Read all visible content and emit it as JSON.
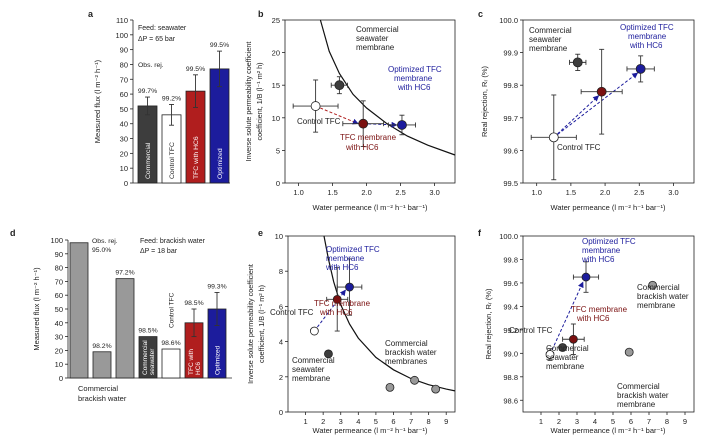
{
  "chart_data": [
    {
      "panel": "a",
      "type": "bar",
      "ylabel": "Measured flux (l m⁻² h⁻¹)",
      "ylim": [
        0,
        110
      ],
      "yticks": [
        0,
        10,
        20,
        30,
        40,
        50,
        60,
        70,
        80,
        90,
        100,
        110
      ],
      "categories": [
        "Commercial",
        "Control TFC",
        "TFC with HC6",
        "Optimized"
      ],
      "values": [
        52,
        46,
        62,
        77
      ],
      "errors": [
        6,
        7,
        11,
        12
      ],
      "fill_colors": [
        "#3d3d3d",
        "#ffffff",
        "#b01e1e",
        "#1c1c9c"
      ],
      "rejection_labels": [
        "99.7%",
        "99.2%",
        "99.5%",
        "99.5%"
      ],
      "annotations": [
        "Obs. rej.",
        "Feed: seawater",
        "ΔP = 65 bar"
      ]
    },
    {
      "panel": "b",
      "type": "scatter",
      "xlabel": "Water permeance (l m⁻² h⁻¹ bar⁻¹)",
      "ylabel": "Inverse solute permeability coefficient, 1/B (l⁻¹ m² h)",
      "xlim": [
        0.8,
        3.3
      ],
      "ylim": [
        0,
        25
      ],
      "xticks": [
        "1.0",
        "1.5",
        "2.0",
        "2.5",
        "3.0"
      ],
      "yticks": [
        "0",
        "5",
        "10",
        "15",
        "20",
        "25"
      ],
      "points": [
        {
          "name": "Control TFC",
          "x": 1.25,
          "y": 11.8,
          "xerr": 0.33,
          "yerr": 4.0,
          "color": "#ffffff"
        },
        {
          "name": "Commercial seawater membrane",
          "x": 1.6,
          "y": 15.0,
          "xerr": 0.12,
          "yerr": 1.3,
          "color": "#3d3d3d"
        },
        {
          "name": "TFC membrane with HC6",
          "x": 1.95,
          "y": 9.1,
          "xerr": 0.3,
          "yerr": 3.5,
          "color": "#7a1010"
        },
        {
          "name": "Optimized TFC membrane with HC6",
          "x": 2.52,
          "y": 8.9,
          "xerr": 0.2,
          "yerr": 1.5,
          "color": "#1c1c9c"
        }
      ],
      "curve": [
        [
          1.32,
          25
        ],
        [
          1.45,
          20.2
        ],
        [
          1.6,
          16.8
        ],
        [
          1.8,
          13.6
        ],
        [
          2.0,
          11.5
        ],
        [
          2.3,
          9.1
        ],
        [
          2.6,
          7.2
        ],
        [
          2.9,
          5.8
        ],
        [
          3.3,
          4.3
        ]
      ],
      "labels": [
        "Commercial",
        "seawater",
        "membrane",
        "Optimized TFC",
        "membrane",
        "with HC6",
        "Control TFC",
        "TFC membrane",
        "with HC6"
      ]
    },
    {
      "panel": "c",
      "type": "scatter",
      "xlabel": "Water permeance (l m⁻² h⁻¹ bar⁻¹)",
      "ylabel": "Real rejection, Rᵣ (%)",
      "xlim": [
        0.8,
        3.3
      ],
      "ylim": [
        99.5,
        100.0
      ],
      "xticks": [
        "1.0",
        "1.5",
        "2.0",
        "2.5",
        "3.0"
      ],
      "yticks": [
        "99.5",
        "99.6",
        "99.7",
        "99.8",
        "99.9",
        "100.0"
      ],
      "points": [
        {
          "name": "Control TFC",
          "x": 1.25,
          "y": 99.64,
          "xerr": 0.33,
          "yerr": 0.13,
          "color": "#ffffff"
        },
        {
          "name": "Commercial seawater membrane",
          "x": 1.6,
          "y": 99.87,
          "xerr": 0.12,
          "yerr": 0.025,
          "color": "#3d3d3d"
        },
        {
          "name": "TFC membrane with HC6",
          "x": 1.95,
          "y": 99.78,
          "xerr": 0.3,
          "yerr": 0.13,
          "color": "#7a1010"
        },
        {
          "name": "Optimized TFC membrane with HC6",
          "x": 2.52,
          "y": 99.85,
          "xerr": 0.2,
          "yerr": 0.04,
          "color": "#1c1c9c"
        }
      ],
      "labels": [
        "Commercial",
        "seawater",
        "membrane",
        "Optimized TFC",
        "membrane",
        "with HC6",
        "Control TFC"
      ]
    },
    {
      "panel": "d",
      "type": "bar",
      "ylabel": "Measured flux (l m⁻² h⁻¹)",
      "ylim": [
        0,
        100
      ],
      "yticks": [
        0,
        10,
        20,
        30,
        40,
        50,
        60,
        70,
        80,
        90,
        100
      ],
      "categories": [
        "Commercial brackish water",
        "Commercial brackish water",
        "Commercial brackish water",
        "Commercial seawater",
        "Control TFC",
        "TFC with HC6",
        "Optimized"
      ],
      "values": [
        98,
        19,
        72,
        30,
        21,
        40,
        50
      ],
      "errors": [
        0,
        0,
        0,
        0,
        0,
        10,
        12
      ],
      "fill_colors": [
        "#999999",
        "#999999",
        "#999999",
        "#3d3d3d",
        "#ffffff",
        "#b01e1e",
        "#1c1c9c"
      ],
      "rejection_labels": [
        "95.0%",
        "98.2%",
        "97.2%",
        "98.5%",
        "98.6%",
        "98.5%",
        "99.3%"
      ],
      "annotations": [
        "Obs. rej.",
        "Feed: brackish water",
        "ΔP = 18 bar",
        "Commercial",
        "brackish water",
        "Commercial",
        "seawater",
        "Control TFC",
        "TFC with",
        "HC6",
        "Optimized"
      ]
    },
    {
      "panel": "e",
      "type": "scatter",
      "xlabel": "Water permeance (l m⁻² h⁻¹ bar⁻¹)",
      "ylabel": "Inverse solute permeability coefficient, 1/B (l⁻¹ m² h)",
      "xlim": [
        0,
        9.5
      ],
      "ylim": [
        0,
        10
      ],
      "xticks": [
        "1",
        "2",
        "3",
        "4",
        "5",
        "6",
        "7",
        "8",
        "9"
      ],
      "yticks": [
        "0",
        "2",
        "4",
        "6",
        "8",
        "10"
      ],
      "points": [
        {
          "name": "Control TFC",
          "x": 1.5,
          "y": 4.6,
          "xerr": 0,
          "yerr": 0,
          "color": "#ffffff"
        },
        {
          "name": "Commercial seawater membrane",
          "x": 2.3,
          "y": 3.3,
          "xerr": 0,
          "yerr": 0,
          "color": "#3d3d3d"
        },
        {
          "name": "TFC membrane with HC6",
          "x": 2.8,
          "y": 6.4,
          "xerr": 0.6,
          "yerr": 1.8,
          "color": "#7a1010"
        },
        {
          "name": "Optimized TFC membrane with HC6",
          "x": 3.5,
          "y": 7.1,
          "xerr": 0.7,
          "yerr": 1.6,
          "color": "#1c1c9c"
        },
        {
          "name": "Commercial brackish water membrane 1",
          "x": 5.8,
          "y": 1.4,
          "xerr": 0,
          "yerr": 0,
          "color": "#999999"
        },
        {
          "name": "Commercial brackish water membrane 2",
          "x": 7.2,
          "y": 1.8,
          "xerr": 0,
          "yerr": 0,
          "color": "#999999"
        },
        {
          "name": "Commercial brackish water membrane 3",
          "x": 8.4,
          "y": 1.3,
          "xerr": 0,
          "yerr": 0,
          "color": "#999999"
        }
      ],
      "curve": [
        [
          2.05,
          10
        ],
        [
          2.3,
          8.7
        ],
        [
          2.6,
          7.4
        ],
        [
          3.0,
          6.1
        ],
        [
          3.5,
          5.0
        ],
        [
          4.0,
          4.2
        ],
        [
          5.0,
          3.1
        ],
        [
          6.0,
          2.4
        ],
        [
          7.0,
          1.9
        ],
        [
          8.0,
          1.55
        ],
        [
          9.0,
          1.3
        ],
        [
          9.5,
          1.2
        ]
      ],
      "labels": [
        "Optimized TFC",
        "membrane",
        "with HC6",
        "TFC membrane",
        "with HC6",
        "Control TFC",
        "Commercial",
        "seawater",
        "membrane",
        "Commercial",
        "brackish water",
        "membranes"
      ]
    },
    {
      "panel": "f",
      "type": "scatter",
      "xlabel": "Water permeance (l m⁻² h⁻¹ bar⁻¹)",
      "ylabel": "Real rejection, Rᵣ (%)",
      "xlim": [
        0,
        9.5
      ],
      "ylim": [
        98.5,
        100.0
      ],
      "xticks": [
        "1",
        "2",
        "3",
        "4",
        "5",
        "6",
        "7",
        "8",
        "9"
      ],
      "yticks": [
        "98.6",
        "98.8",
        "99.0",
        "99.2",
        "99.4",
        "99.6",
        "99.8",
        "100.0"
      ],
      "points": [
        {
          "name": "Control TFC",
          "x": 1.5,
          "y": 98.99,
          "xerr": 0.2,
          "yerr": 0.05,
          "color": "#ffffff"
        },
        {
          "name": "Commercial seawater membrane",
          "x": 2.2,
          "y": 99.05,
          "xerr": 0,
          "yerr": 0,
          "color": "#3d3d3d"
        },
        {
          "name": "TFC membrane with HC6",
          "x": 2.8,
          "y": 99.12,
          "xerr": 0.6,
          "yerr": 0.13,
          "color": "#7a1010"
        },
        {
          "name": "Optimized TFC membrane with HC6",
          "x": 3.5,
          "y": 99.65,
          "xerr": 0.7,
          "yerr": 0.13,
          "color": "#1c1c9c"
        },
        {
          "name": "Commercial brackish water membrane 1",
          "x": 5.9,
          "y": 99.01,
          "xerr": 0,
          "yerr": 0,
          "color": "#999999"
        },
        {
          "name": "Commercial brackish water membrane 2",
          "x": 7.2,
          "y": 99.58,
          "xerr": 0,
          "yerr": 0,
          "color": "#999999"
        }
      ],
      "labels": [
        "Optimized TFC",
        "membrane",
        "with HC6",
        "TFC membrane",
        "with HC6",
        "Control TFC",
        "Commercial",
        "seawater",
        "membrane",
        "Commercial",
        "brackish water",
        "membrane",
        "Commercial",
        "brackish water",
        "membrane"
      ]
    }
  ]
}
